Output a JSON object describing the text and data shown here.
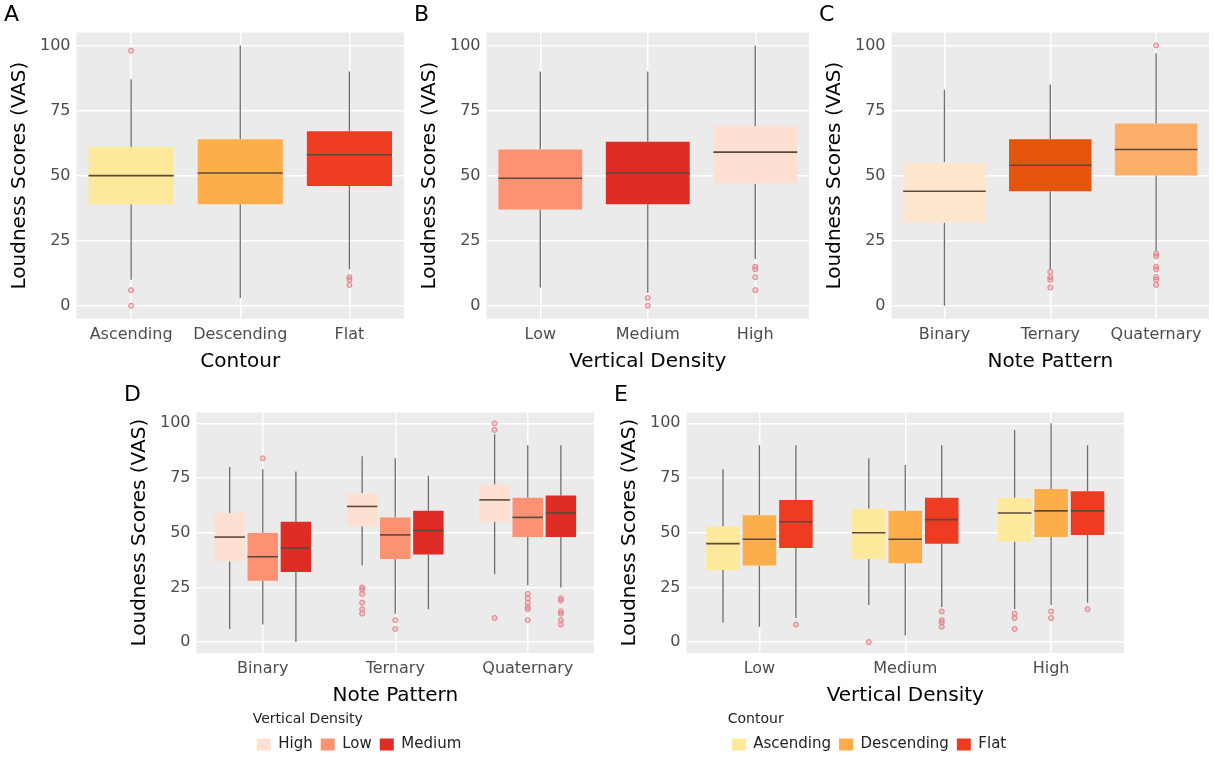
{
  "chart_data": [
    {
      "type": "box",
      "title": "A",
      "xlabel": "Contour",
      "ylabel": "Loudness Scores (VAS)",
      "categories": [
        "Ascending",
        "Descending",
        "Flat"
      ],
      "colors": [
        "#fde99c",
        "#fdae4b",
        "#ee3c22"
      ],
      "boxes": [
        {
          "low": 10,
          "q1": 39,
          "median": 50,
          "q3": 61,
          "high": 87,
          "outliers": [
            98,
            6,
            0
          ]
        },
        {
          "low": 3,
          "q1": 39,
          "median": 51,
          "q3": 64,
          "high": 100
        },
        {
          "low": 14,
          "q1": 46,
          "median": 58,
          "q3": 67,
          "high": 90,
          "outliers": [
            11,
            10,
            8
          ]
        }
      ],
      "ylim": [
        -5,
        105
      ],
      "yticks": [
        0,
        25,
        50,
        75,
        100
      ],
      "grid": true
    },
    {
      "type": "box",
      "title": "B",
      "xlabel": "Vertical Density",
      "ylabel": "Loudness Scores (VAS)",
      "categories": [
        "Low",
        "Medium",
        "High"
      ],
      "colors": [
        "#fc9272",
        "#de2d26",
        "#fee0d2"
      ],
      "boxes": [
        {
          "low": 7,
          "q1": 37,
          "median": 49,
          "q3": 60,
          "high": 90
        },
        {
          "low": 5,
          "q1": 39,
          "median": 51,
          "q3": 63,
          "high": 90,
          "outliers": [
            3,
            0
          ]
        },
        {
          "low": 18,
          "q1": 47,
          "median": 59,
          "q3": 69,
          "high": 100,
          "outliers": [
            15,
            14,
            11,
            6
          ]
        }
      ],
      "ylim": [
        -5,
        105
      ],
      "yticks": [
        0,
        25,
        50,
        75,
        100
      ],
      "grid": true
    },
    {
      "type": "box",
      "title": "C",
      "xlabel": "Note Pattern",
      "ylabel": "Loudness Scores (VAS)",
      "categories": [
        "Binary",
        "Ternary",
        "Quaternary"
      ],
      "colors": [
        "#fee6ce",
        "#e6550d",
        "#fdae6b"
      ],
      "boxes": [
        {
          "low": 0,
          "q1": 32,
          "median": 44,
          "q3": 55,
          "high": 83
        },
        {
          "low": 14,
          "q1": 44,
          "median": 54,
          "q3": 64,
          "high": 85,
          "outliers": [
            13,
            11,
            10,
            7
          ]
        },
        {
          "low": 21,
          "q1": 50,
          "median": 60,
          "q3": 70,
          "high": 97,
          "outliers": [
            100,
            20,
            19,
            15,
            14,
            11,
            10,
            8
          ]
        }
      ],
      "ylim": [
        -5,
        105
      ],
      "yticks": [
        0,
        25,
        50,
        75,
        100
      ],
      "grid": true
    },
    {
      "type": "box",
      "title": "D",
      "xlabel": "Note Pattern",
      "ylabel": "Loudness Scores (VAS)",
      "legend_title": "Vertical Density",
      "categories": [
        "Binary",
        "Ternary",
        "Quaternary"
      ],
      "series": [
        {
          "name": "High",
          "color": "#fee0d2",
          "boxes": [
            {
              "low": 6,
              "q1": 37,
              "median": 48,
              "q3": 59,
              "high": 80
            },
            {
              "low": 35,
              "q1": 53,
              "median": 62,
              "q3": 68,
              "high": 85,
              "outliers": [
                25,
                24,
                22,
                18,
                15,
                13
              ]
            },
            {
              "low": 31,
              "q1": 55,
              "median": 65,
              "q3": 72,
              "high": 95,
              "outliers": [
                100,
                97,
                11
              ]
            }
          ]
        },
        {
          "name": "Low",
          "color": "#fc9272",
          "boxes": [
            {
              "low": 8,
              "q1": 28,
              "median": 39,
              "q3": 50,
              "high": 79,
              "outliers": [
                84
              ]
            },
            {
              "low": 13,
              "q1": 38,
              "median": 49,
              "q3": 57,
              "high": 84,
              "outliers": [
                10,
                6
              ]
            },
            {
              "low": 26,
              "q1": 48,
              "median": 57,
              "q3": 66,
              "high": 90,
              "outliers": [
                22,
                20,
                18,
                16,
                15,
                10
              ]
            }
          ]
        },
        {
          "name": "Medium",
          "color": "#de2d26",
          "boxes": [
            {
              "low": 0,
              "q1": 32,
              "median": 43,
              "q3": 55,
              "high": 78
            },
            {
              "low": 15,
              "q1": 40,
              "median": 51,
              "q3": 60,
              "high": 76
            },
            {
              "low": 25,
              "q1": 48,
              "median": 59,
              "q3": 67,
              "high": 90,
              "outliers": [
                20,
                19,
                14,
                13,
                10,
                8
              ]
            }
          ]
        }
      ],
      "ylim": [
        -5,
        105
      ],
      "yticks": [
        0,
        25,
        50,
        75,
        100
      ],
      "grid": true,
      "legend": "bottom"
    },
    {
      "type": "box",
      "title": "E",
      "xlabel": "Vertical Density",
      "ylabel": "Loudness Scores (VAS)",
      "legend_title": "Contour",
      "categories": [
        "Low",
        "Medium",
        "High"
      ],
      "series": [
        {
          "name": "Ascending",
          "color": "#fde99c",
          "boxes": [
            {
              "low": 9,
              "q1": 33,
              "median": 45,
              "q3": 53,
              "high": 79
            },
            {
              "low": 17,
              "q1": 38,
              "median": 50,
              "q3": 61,
              "high": 84,
              "outliers": [
                0
              ]
            },
            {
              "low": 15,
              "q1": 46,
              "median": 59,
              "q3": 66,
              "high": 97,
              "outliers": [
                13,
                11,
                6
              ]
            }
          ]
        },
        {
          "name": "Descending",
          "color": "#fdae4b",
          "boxes": [
            {
              "low": 7,
              "q1": 35,
              "median": 47,
              "q3": 58,
              "high": 90
            },
            {
              "low": 3,
              "q1": 36,
              "median": 47,
              "q3": 60,
              "high": 81
            },
            {
              "low": 17,
              "q1": 48,
              "median": 60,
              "q3": 70,
              "high": 100,
              "outliers": [
                14,
                11
              ]
            }
          ]
        },
        {
          "name": "Flat",
          "color": "#ee3c22",
          "boxes": [
            {
              "low": 11,
              "q1": 43,
              "median": 55,
              "q3": 65,
              "high": 90,
              "outliers": [
                8
              ]
            },
            {
              "low": 16,
              "q1": 45,
              "median": 56,
              "q3": 66,
              "high": 90,
              "outliers": [
                14,
                10,
                9,
                7
              ]
            },
            {
              "low": 18,
              "q1": 49,
              "median": 60,
              "q3": 69,
              "high": 90,
              "outliers": [
                15
              ]
            }
          ]
        }
      ],
      "ylim": [
        -5,
        105
      ],
      "yticks": [
        0,
        25,
        50,
        75,
        100
      ],
      "grid": true,
      "legend": "bottom"
    }
  ]
}
